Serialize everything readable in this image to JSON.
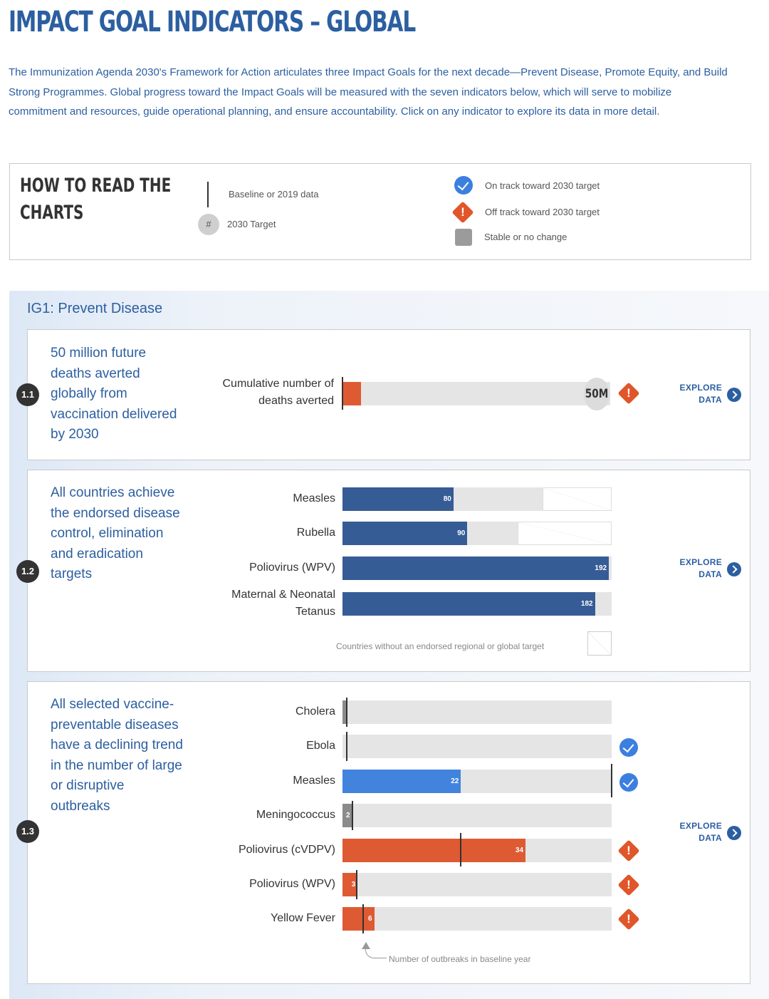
{
  "page": {
    "title": "IMPACT GOAL INDICATORS – GLOBAL",
    "intro": "The Immunization Agenda 2030's Framework for Action articulates three Impact Goals for the next decade—Prevent Disease, Promote Equity, and Build Strong Programmes. Global progress toward the Impact Goals will be measured with the seven indicators below, which will serve to mobilize commitment and resources, guide operational planning, and ensure accountability. Click on any indicator to explore its data in more detail."
  },
  "legend": {
    "title_line1": "HOW TO READ THE",
    "title_line2": "CHARTS",
    "baseline": "Baseline or 2019 data",
    "target_symbol": "#",
    "target": "2030 Target",
    "on_track": "On track toward 2030 target",
    "off_track": "Off track toward 2030 target",
    "stable": "Stable or no change",
    "icons": [
      "check-circle-icon",
      "warning-diamond-icon",
      "gray-square-icon"
    ],
    "colors": {
      "on_track": "#3c7fe0",
      "off_track": "#e0562a",
      "stable": "#9b9b9b"
    }
  },
  "section": {
    "title": "IG1: Prevent Disease",
    "explore_line1": "EXPLORE",
    "explore_line2": "DATA",
    "colors": {
      "dark_blue": "#365c96",
      "bright_blue": "#4283de",
      "orange": "#de5a33",
      "gray": "#8b8b8b",
      "track": "#e5e5e5"
    }
  },
  "indicator_1": {
    "number": "1.1",
    "description": "50 million future deaths averted globally from vaccination delivered by 2030",
    "metric_label": "Cumulative number of deaths averted",
    "target_label": "50M",
    "progress_fraction": 0.07,
    "status": "off-track"
  },
  "indicator_2": {
    "number": "1.2",
    "description": "All countries achieve the endorsed disease control, elimination and eradication targets",
    "note": "Countries without an endorsed regional or global target",
    "scale_max": 194,
    "rows": [
      {
        "label": "Measles",
        "value": "80",
        "value_num": 80,
        "no_target_num": 50
      },
      {
        "label": "Rubella",
        "value": "90",
        "value_num": 90,
        "no_target_num": 68
      },
      {
        "label": "Poliovirus (WPV)",
        "value": "192",
        "value_num": 192,
        "no_target_num": 0
      },
      {
        "label": "Maternal & Neonatal Tetanus",
        "value": "182",
        "value_num": 182,
        "no_target_num": 0
      }
    ]
  },
  "indicator_3": {
    "number": "1.3",
    "description": "All selected vaccine-preventable diseases have a declining trend in the number of large or disruptive outbreaks",
    "note": "Number of outbreaks in baseline year",
    "scale_max": 50,
    "rows": [
      {
        "label": "Cholera",
        "value": "",
        "value_num": 0.6,
        "baseline_num": 0.8,
        "color": "gray",
        "status": "none"
      },
      {
        "label": "Ebola",
        "value": "",
        "value_num": 0,
        "baseline_num": 0.8,
        "color": "gray",
        "status": "on-track"
      },
      {
        "label": "Measles",
        "value": "22",
        "value_num": 22,
        "baseline_num": 50.3,
        "color": "bright_blue",
        "status": "on-track"
      },
      {
        "label": "Meningococcus",
        "value": "2",
        "value_num": 1.8,
        "baseline_num": 1.9,
        "color": "gray",
        "status": "none"
      },
      {
        "label": "Poliovirus (cVDPV)",
        "value": "34",
        "value_num": 34,
        "baseline_num": 22,
        "color": "orange",
        "status": "off-track"
      },
      {
        "label": "Poliovirus (WPV)",
        "value": "3",
        "value_num": 2.8,
        "baseline_num": 2.6,
        "color": "orange",
        "status": "off-track"
      },
      {
        "label": "Yellow Fever",
        "value": "6",
        "value_num": 5.9,
        "baseline_num": 3.8,
        "color": "orange",
        "status": "off-track"
      }
    ]
  }
}
